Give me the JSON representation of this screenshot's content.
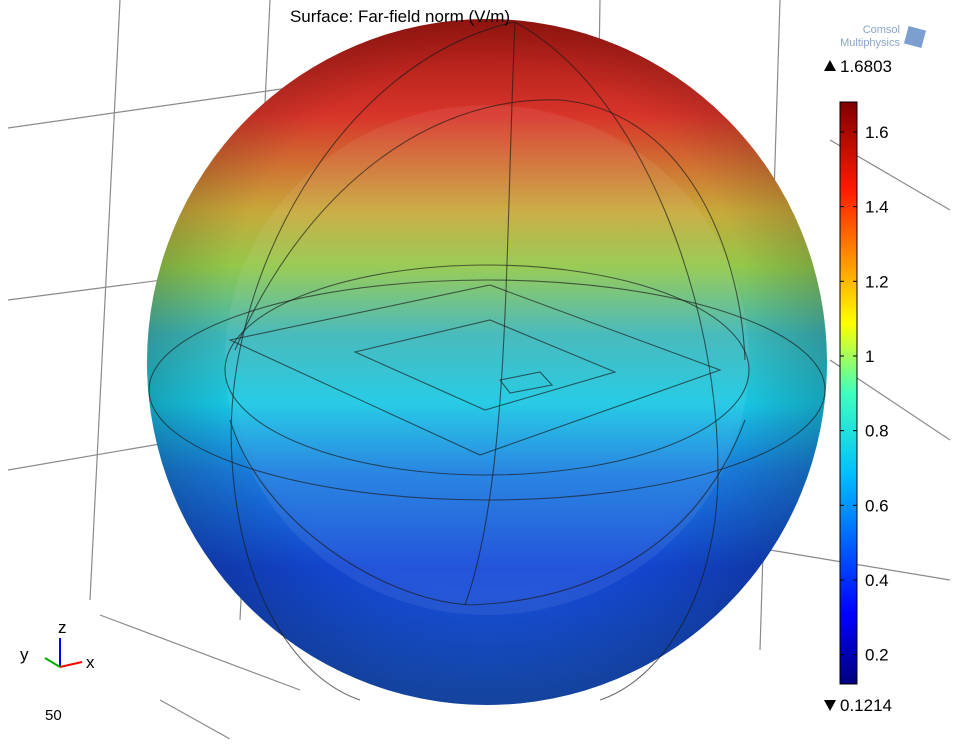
{
  "plot": {
    "title": "Surface: Far-field norm (V/m)",
    "logo": [
      "Comsol",
      "Multiphysics"
    ]
  },
  "colorbar": {
    "max": 1.6803,
    "min": 0.1214,
    "ticks": [
      1.6,
      1.4,
      1.2,
      1,
      0.8,
      0.6,
      0.4,
      0.2
    ]
  },
  "axes": {
    "z": "z",
    "y": "y",
    "x": "x"
  },
  "scale": "50"
}
